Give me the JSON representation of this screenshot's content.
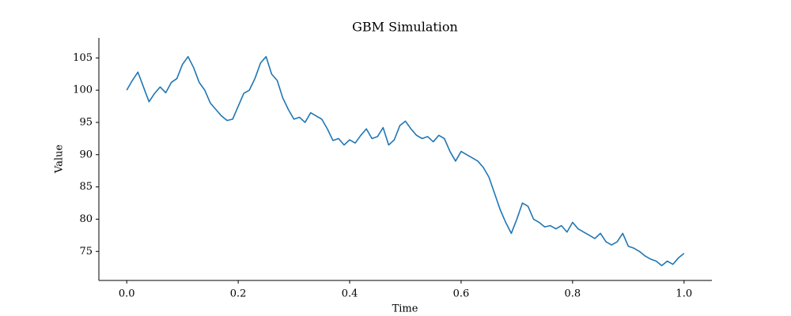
{
  "chart_data": {
    "type": "line",
    "title": "GBM Simulation",
    "xlabel": "Time",
    "ylabel": "Value",
    "x": [
      0.0,
      0.01,
      0.02,
      0.03,
      0.04,
      0.05,
      0.06,
      0.07,
      0.08,
      0.09,
      0.1,
      0.11,
      0.12,
      0.13,
      0.14,
      0.15,
      0.16,
      0.17,
      0.18,
      0.19,
      0.2,
      0.21,
      0.22,
      0.23,
      0.24,
      0.25,
      0.26,
      0.27,
      0.28,
      0.29,
      0.3,
      0.31,
      0.32,
      0.33,
      0.34,
      0.35,
      0.36,
      0.37,
      0.38,
      0.39,
      0.4,
      0.41,
      0.42,
      0.43,
      0.44,
      0.45,
      0.46,
      0.47,
      0.48,
      0.49,
      0.5,
      0.51,
      0.52,
      0.53,
      0.54,
      0.55,
      0.56,
      0.57,
      0.58,
      0.59,
      0.6,
      0.61,
      0.62,
      0.63,
      0.64,
      0.65,
      0.66,
      0.67,
      0.68,
      0.69,
      0.7,
      0.71,
      0.72,
      0.73,
      0.74,
      0.75,
      0.76,
      0.77,
      0.78,
      0.79,
      0.8,
      0.81,
      0.82,
      0.83,
      0.84,
      0.85,
      0.86,
      0.87,
      0.88,
      0.89,
      0.9,
      0.91,
      0.92,
      0.93,
      0.94,
      0.95,
      0.96,
      0.97,
      0.98,
      0.99,
      1.0
    ],
    "series": [
      {
        "color": "#1f77b4",
        "values": [
          100.0,
          101.5,
          102.8,
          100.5,
          98.2,
          99.5,
          100.5,
          99.6,
          101.2,
          101.8,
          104.0,
          105.2,
          103.5,
          101.2,
          100.0,
          98.0,
          97.0,
          96.0,
          95.3,
          95.5,
          97.5,
          99.5,
          100.0,
          101.8,
          104.2,
          105.2,
          102.5,
          101.5,
          98.8,
          97.0,
          95.5,
          95.8,
          95.0,
          96.5,
          96.0,
          95.5,
          94.0,
          92.2,
          92.5,
          91.5,
          92.3,
          91.8,
          93.0,
          94.0,
          92.5,
          92.8,
          94.2,
          91.5,
          92.3,
          94.5,
          95.2,
          94.0,
          93.0,
          92.5,
          92.8,
          92.0,
          93.0,
          92.5,
          90.5,
          89.0,
          90.5,
          90.0,
          89.5,
          89.0,
          88.0,
          86.5,
          84.0,
          81.5,
          79.5,
          77.8,
          80.0,
          82.5,
          82.0,
          80.0,
          79.5,
          78.8,
          79.0,
          78.5,
          79.0,
          78.0,
          79.5,
          78.5,
          78.0,
          77.5,
          77.0,
          77.8,
          76.5,
          76.0,
          76.5,
          77.8,
          75.8,
          75.5,
          75.0,
          74.3,
          73.8,
          73.5,
          72.8,
          73.5,
          73.0,
          74.0,
          74.7
        ]
      }
    ],
    "xlim": [
      -0.05,
      1.05
    ],
    "xticks": [
      {
        "value": 0,
        "label": "0.0"
      },
      0.2,
      0.4,
      0.6,
      0.8,
      {
        "value": 1,
        "label": "1.0"
      }
    ],
    "ylim": [
      70.5,
      108.1
    ],
    "yticks": [
      75,
      80,
      85,
      90,
      95,
      100,
      105
    ],
    "grid": false
  }
}
